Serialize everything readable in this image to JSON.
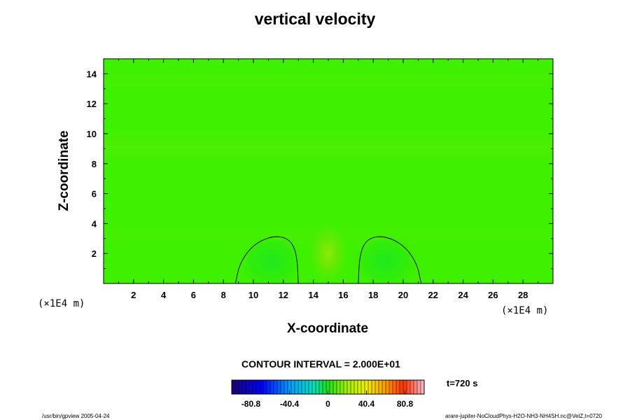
{
  "chart_data": {
    "type": "heatmap",
    "title": "vertical velocity",
    "xlabel": "X-coordinate",
    "ylabel": "Z-coordinate",
    "x_unit": "(×1E4 m)",
    "y_unit": "(×1E4 m)",
    "xlim": [
      0,
      30
    ],
    "ylim": [
      0,
      15
    ],
    "x_ticks": [
      "2",
      "4",
      "6",
      "8",
      "10",
      "12",
      "14",
      "16",
      "18",
      "20",
      "22",
      "24",
      "26",
      "28"
    ],
    "y_ticks": [
      "2",
      "4",
      "6",
      "8",
      "10",
      "12",
      "14"
    ],
    "grid": false,
    "colormap": "rainbow",
    "colorbar": {
      "range": [
        -101,
        101
      ],
      "tick_labels": [
        "-80.8",
        "-40.4",
        "0",
        "40.4",
        "80.8"
      ],
      "tick_values": [
        -80.8,
        -40.4,
        0,
        40.4,
        80.8
      ]
    },
    "contour_interval_label": "CONTOUR INTERVAL = 2.000E+01",
    "time_label": "t=720 s",
    "background_color": "#3ff000",
    "features": [
      {
        "kind": "updraft",
        "x": 15.0,
        "z": 2.0,
        "value": 10
      },
      {
        "kind": "downdraft",
        "x": 11.2,
        "z": 1.5,
        "value": -12
      },
      {
        "kind": "downdraft",
        "x": 18.8,
        "z": 1.5,
        "value": -12
      }
    ],
    "contours": [
      {
        "value": -20,
        "points": [
          [
            8.8,
            0
          ],
          [
            9.1,
            1.4
          ],
          [
            10.0,
            2.6
          ],
          [
            11.3,
            3.2
          ],
          [
            12.4,
            3.0
          ],
          [
            12.9,
            2.0
          ],
          [
            13.0,
            0
          ]
        ]
      },
      {
        "value": -20,
        "points": [
          [
            17.0,
            0
          ],
          [
            17.1,
            2.0
          ],
          [
            17.6,
            3.0
          ],
          [
            18.7,
            3.2
          ],
          [
            20.0,
            2.6
          ],
          [
            20.9,
            1.4
          ],
          [
            21.2,
            0
          ]
        ]
      }
    ]
  },
  "footer": {
    "left": "/usr/bin/gpview 2005-04-24",
    "right": "arare-jupiter-NoCloudPhys-H2O-NH3-NH4SH.nc@VelZ,t=0720"
  }
}
